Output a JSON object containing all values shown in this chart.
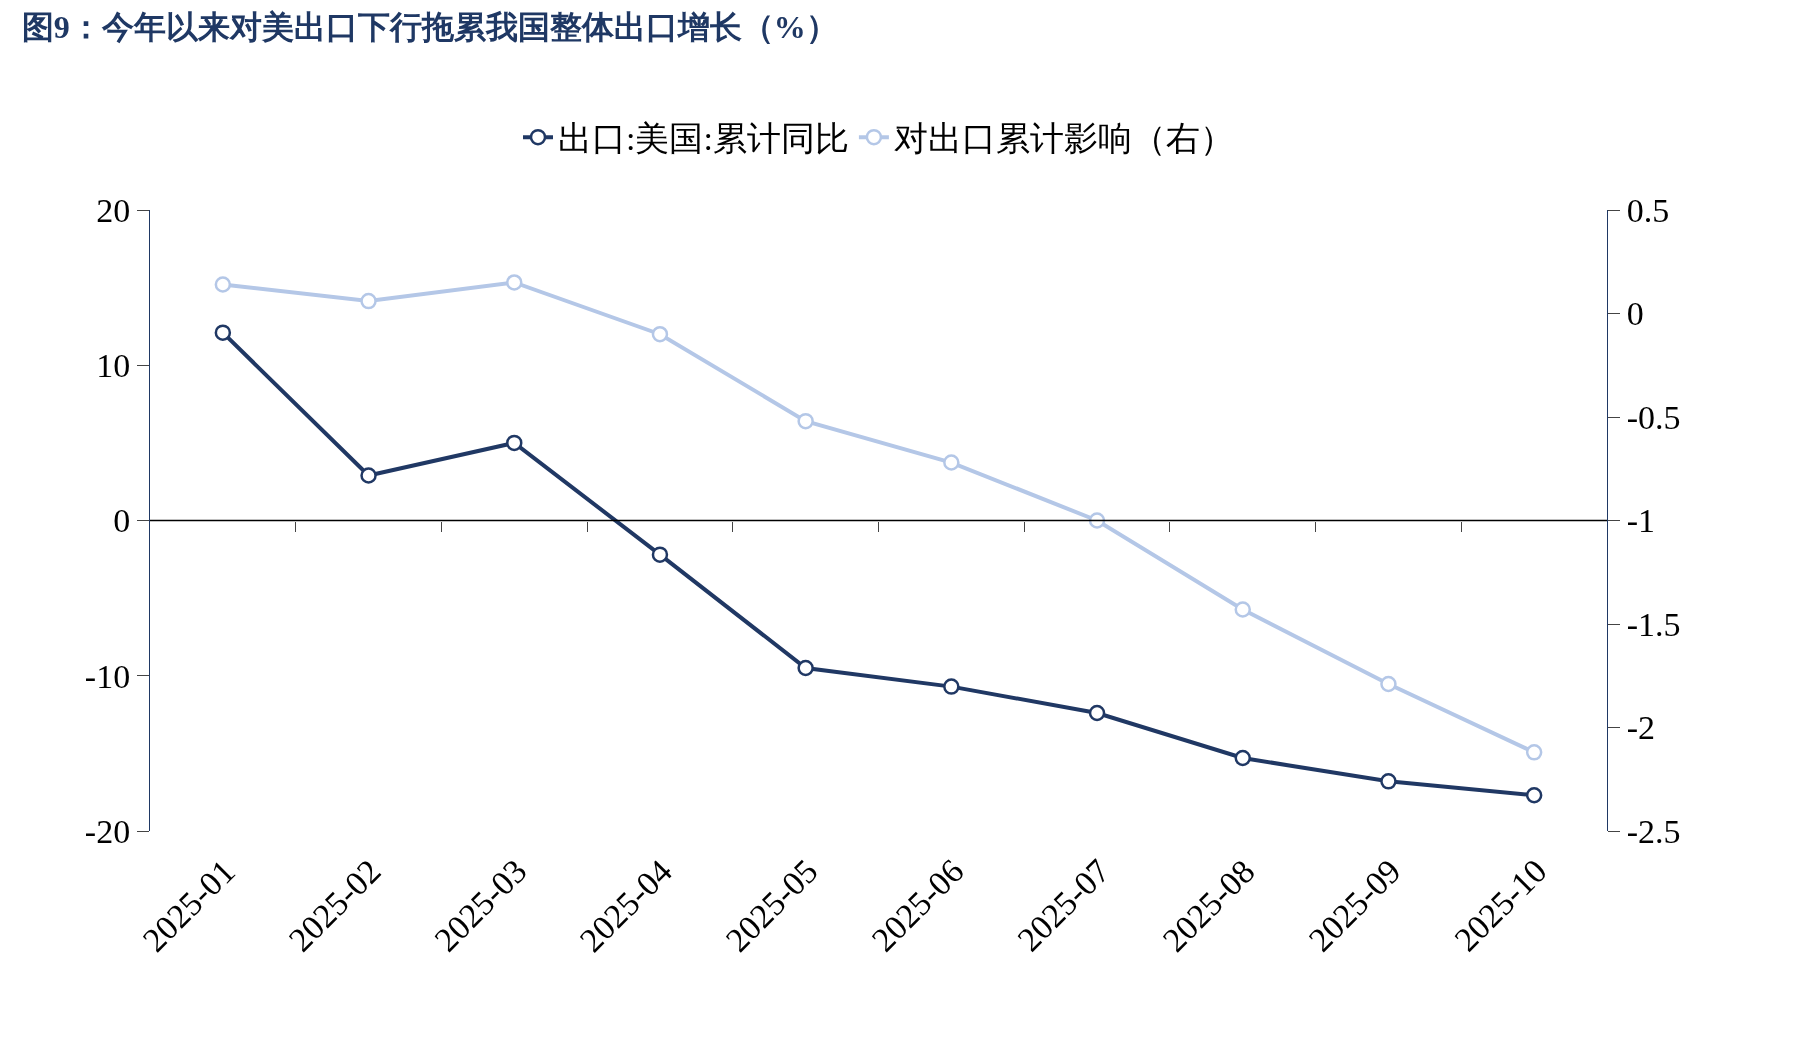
{
  "chart_data": {
    "type": "line",
    "title": "图9：今年以来对美出口下行拖累我国整体出口增长（%）",
    "categories": [
      "2025-01",
      "2025-02",
      "2025-03",
      "2025-04",
      "2025-05",
      "2025-06",
      "2025-07",
      "2025-08",
      "2025-09",
      "2025-10"
    ],
    "series": [
      {
        "name": "出口:美国:累计同比",
        "color": "#203864",
        "values": [
          12.1,
          2.9,
          5.0,
          -2.2,
          -9.5,
          -10.7,
          -12.4,
          -15.3,
          -16.8,
          -17.7
        ]
      },
      {
        "name": "对出口累计影响（右）",
        "color": "#b4c7e7",
        "axis": "y2",
        "values": [
          0.14,
          0.06,
          0.15,
          -0.1,
          -0.52,
          -0.72,
          -1.0,
          -1.43,
          -1.79,
          -2.12
        ]
      }
    ],
    "ylim": [
      -20,
      20
    ],
    "yticks": [
      -20,
      -10,
      0,
      10,
      20
    ],
    "y2lim": [
      -2.5,
      0.5
    ],
    "y2ticks": [
      -2.5,
      -2,
      -1.5,
      -1,
      -0.5,
      0,
      0.5
    ],
    "ref_lines": [
      {
        "axis": "y",
        "value": 0,
        "color": "#000000"
      }
    ],
    "marker": "circle",
    "line_style": "solid",
    "legend": "top"
  }
}
